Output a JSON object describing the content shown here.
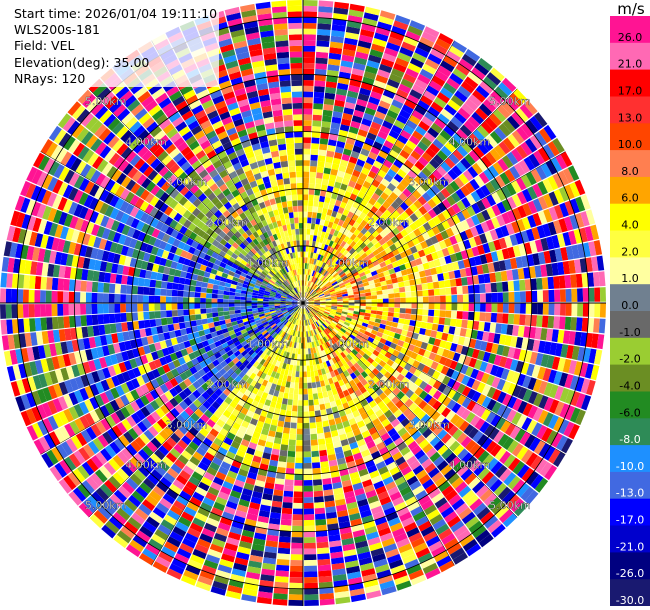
{
  "header": {
    "start_time": "Start time: 2026/01/04 19:11:10",
    "instrument": "WLS200s-181",
    "field": "Field: VEL",
    "elevation": "Elevation(deg): 35.00",
    "nrays": "NRays: 120"
  },
  "chart_data": {
    "type": "heatmap",
    "projection": "polar-ppi",
    "field": "VEL",
    "units": "m/s",
    "n_rays": 120,
    "elevation_deg": 35.0,
    "range_rings_km": [
      1.0,
      2.0,
      3.0,
      4.0,
      5.0
    ],
    "range_labels": [
      "1.00km",
      "2.00km",
      "3.00km",
      "4.00km",
      "5.00km"
    ],
    "colorbar": {
      "title": "m/s",
      "ticks": [
        "26.0",
        "21.0",
        "17.0",
        "13.0",
        "10.0",
        "8.0",
        "6.0",
        "4.0",
        "2.0",
        "1.0",
        "0.0",
        "-1.0",
        "-2.0",
        "-4.0",
        "-6.0",
        "-8.0",
        "-10.0",
        "-13.0",
        "-17.0",
        "-21.0",
        "-26.0",
        "-30.0"
      ],
      "colors": [
        "#ff1493",
        "#ff69b4",
        "#ff0000",
        "#ff3030",
        "#ff4500",
        "#ff7f50",
        "#ffa500",
        "#ffff00",
        "#ffff40",
        "#ffffa0",
        "#708090",
        "#696969",
        "#9acd32",
        "#6b8e23",
        "#228b22",
        "#2e8b57",
        "#1e90ff",
        "#4169e1",
        "#0000ff",
        "#0000cd",
        "#000080",
        "#191970"
      ]
    },
    "regions": [
      {
        "azimuth_range_deg": [
          0,
          120
        ],
        "range_km": [
          0,
          2.6
        ],
        "dominant_velocity": "4.0 to 8.0"
      },
      {
        "azimuth_range_deg": [
          160,
          220
        ],
        "range_km": [
          0,
          2.8
        ],
        "dominant_velocity": "1.0 to 4.0"
      },
      {
        "azimuth_range_deg": [
          220,
          300
        ],
        "range_km": [
          0,
          3.2
        ],
        "dominant_velocity": "-17.0 to -2.0"
      },
      {
        "azimuth_range_deg": [
          280,
          320
        ],
        "range_km": [
          0,
          1.8
        ],
        "dominant_velocity": "-4.0 to 1.0"
      },
      {
        "azimuth_range_deg": [
          0,
          360
        ],
        "range_km": [
          3.0,
          5.0
        ],
        "dominant_velocity": "noise"
      }
    ]
  }
}
